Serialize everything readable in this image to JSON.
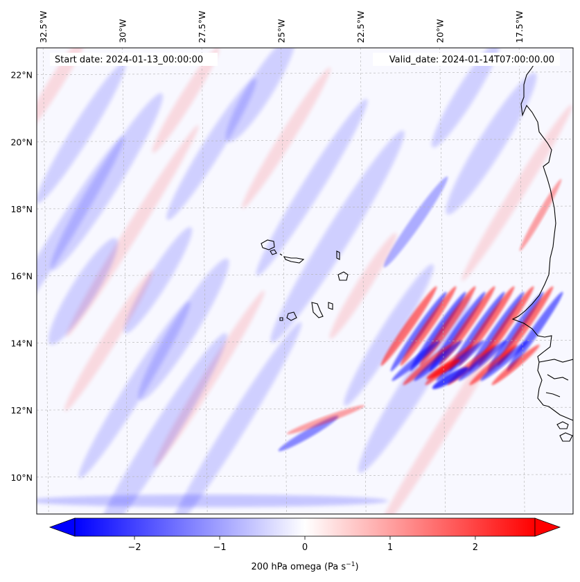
{
  "map": {
    "start_label": "Start date: 2024-01-13_00:00:00",
    "valid_label": "Valid_date: 2024-01-14T07:00:00.00",
    "lon_ticks": [
      {
        "lon": -32.5,
        "label": "32.5°W"
      },
      {
        "lon": -30.0,
        "label": "30°W"
      },
      {
        "lon": -27.5,
        "label": "27.5°W"
      },
      {
        "lon": -25.0,
        "label": "25°W"
      },
      {
        "lon": -22.5,
        "label": "22.5°W"
      },
      {
        "lon": -20.0,
        "label": "20°W"
      },
      {
        "lon": -17.5,
        "label": "17.5°W"
      }
    ],
    "lat_ticks": [
      {
        "lat": 22,
        "label": "22°N"
      },
      {
        "lat": 20,
        "label": "20°N"
      },
      {
        "lat": 18,
        "label": "18°N"
      },
      {
        "lat": 16,
        "label": "16°N"
      },
      {
        "lat": 14,
        "label": "14°N"
      },
      {
        "lat": 12,
        "label": "12°N"
      },
      {
        "lat": 10,
        "label": "10°N"
      }
    ],
    "extent": {
      "lon_min": -32.7,
      "lon_max": -15.8,
      "lat_min": 8.9,
      "lat_max": 22.8
    },
    "colors": {
      "negative": "#0000ff",
      "zero": "#ffffff",
      "positive": "#ff0000",
      "coast": "#000000",
      "grid": "#b0b0b0"
    }
  },
  "colorbar": {
    "label": "200 hPa omega (Pa s",
    "label_exp": "−1",
    "label_end": ")",
    "min": -2.7,
    "max": 2.7,
    "ticks": [
      {
        "value": -2,
        "label": "−2"
      },
      {
        "value": -1,
        "label": "−1"
      },
      {
        "value": 0,
        "label": "0"
      },
      {
        "value": 1,
        "label": "1"
      },
      {
        "value": 2,
        "label": "2"
      }
    ]
  }
}
